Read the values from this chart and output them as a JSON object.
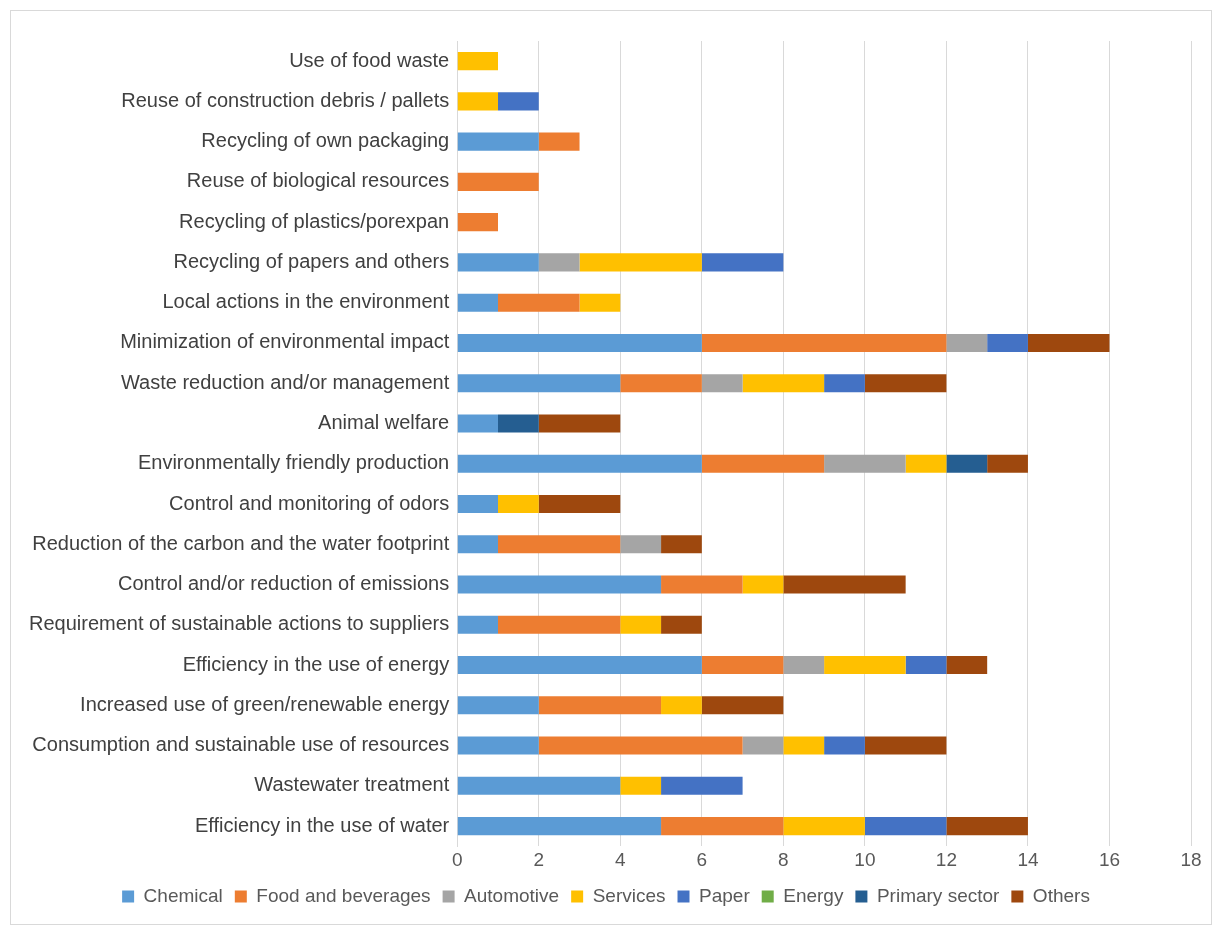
{
  "chart_data": {
    "type": "bar",
    "orientation": "horizontal",
    "stacked": true,
    "categories": [
      "Use of food waste",
      "Reuse of construction debris / pallets",
      "Recycling of own packaging",
      "Reuse of biological resources",
      "Recycling of plastics/porexpan",
      "Recycling of papers and others",
      "Local actions in the environment",
      "Minimization of environmental impact",
      "Waste reduction and/or management",
      "Animal welfare",
      "Environmentally friendly production",
      "Control and monitoring of odors",
      "Reduction of the carbon and the water footprint",
      "Control and/or reduction of emissions",
      "Requirement of sustainable actions to suppliers",
      "Efficiency in the use of energy",
      "Increased use of green/renewable energy",
      "Consumption and sustainable use of resources",
      "Wastewater treatment",
      "Efficiency in the use of water"
    ],
    "series": [
      {
        "name": "Chemical",
        "color": "#5b9bd5",
        "values": [
          0,
          0,
          2,
          0,
          0,
          2,
          1,
          6,
          4,
          1,
          6,
          1,
          1,
          5,
          1,
          6,
          2,
          2,
          4,
          5
        ]
      },
      {
        "name": "Food and beverages",
        "color": "#ed7d31",
        "values": [
          0,
          0,
          1,
          2,
          1,
          0,
          2,
          6,
          2,
          0,
          3,
          0,
          3,
          2,
          3,
          2,
          3,
          5,
          0,
          3
        ]
      },
      {
        "name": "Automotive",
        "color": "#a5a5a5",
        "values": [
          0,
          0,
          0,
          0,
          0,
          1,
          0,
          1,
          1,
          0,
          2,
          0,
          1,
          0,
          0,
          1,
          0,
          1,
          0,
          0
        ]
      },
      {
        "name": "Services",
        "color": "#ffc000",
        "values": [
          1,
          1,
          0,
          0,
          0,
          3,
          1,
          0,
          2,
          0,
          1,
          1,
          0,
          1,
          1,
          2,
          1,
          1,
          1,
          2
        ]
      },
      {
        "name": "Paper",
        "color": "#4472c4",
        "values": [
          0,
          1,
          0,
          0,
          0,
          2,
          0,
          1,
          1,
          0,
          0,
          0,
          0,
          0,
          0,
          1,
          0,
          1,
          2,
          2
        ]
      },
      {
        "name": "Energy",
        "color": "#70ad47",
        "values": [
          0,
          0,
          0,
          0,
          0,
          0,
          0,
          0,
          0,
          0,
          0,
          0,
          0,
          0,
          0,
          0,
          0,
          0,
          0,
          0
        ]
      },
      {
        "name": "Primary sector",
        "color": "#255e91",
        "values": [
          0,
          0,
          0,
          0,
          0,
          0,
          0,
          0,
          0,
          1,
          1,
          0,
          0,
          0,
          0,
          0,
          0,
          0,
          0,
          0
        ]
      },
      {
        "name": "Others",
        "color": "#9e480e",
        "values": [
          0,
          0,
          0,
          0,
          0,
          0,
          0,
          2,
          2,
          2,
          1,
          2,
          1,
          3,
          1,
          1,
          2,
          2,
          0,
          2
        ]
      }
    ],
    "xlim": [
      0,
      18
    ],
    "xticks": [
      0,
      2,
      4,
      6,
      8,
      10,
      12,
      14,
      16,
      18
    ],
    "grid": "x",
    "legend": "bottom"
  }
}
